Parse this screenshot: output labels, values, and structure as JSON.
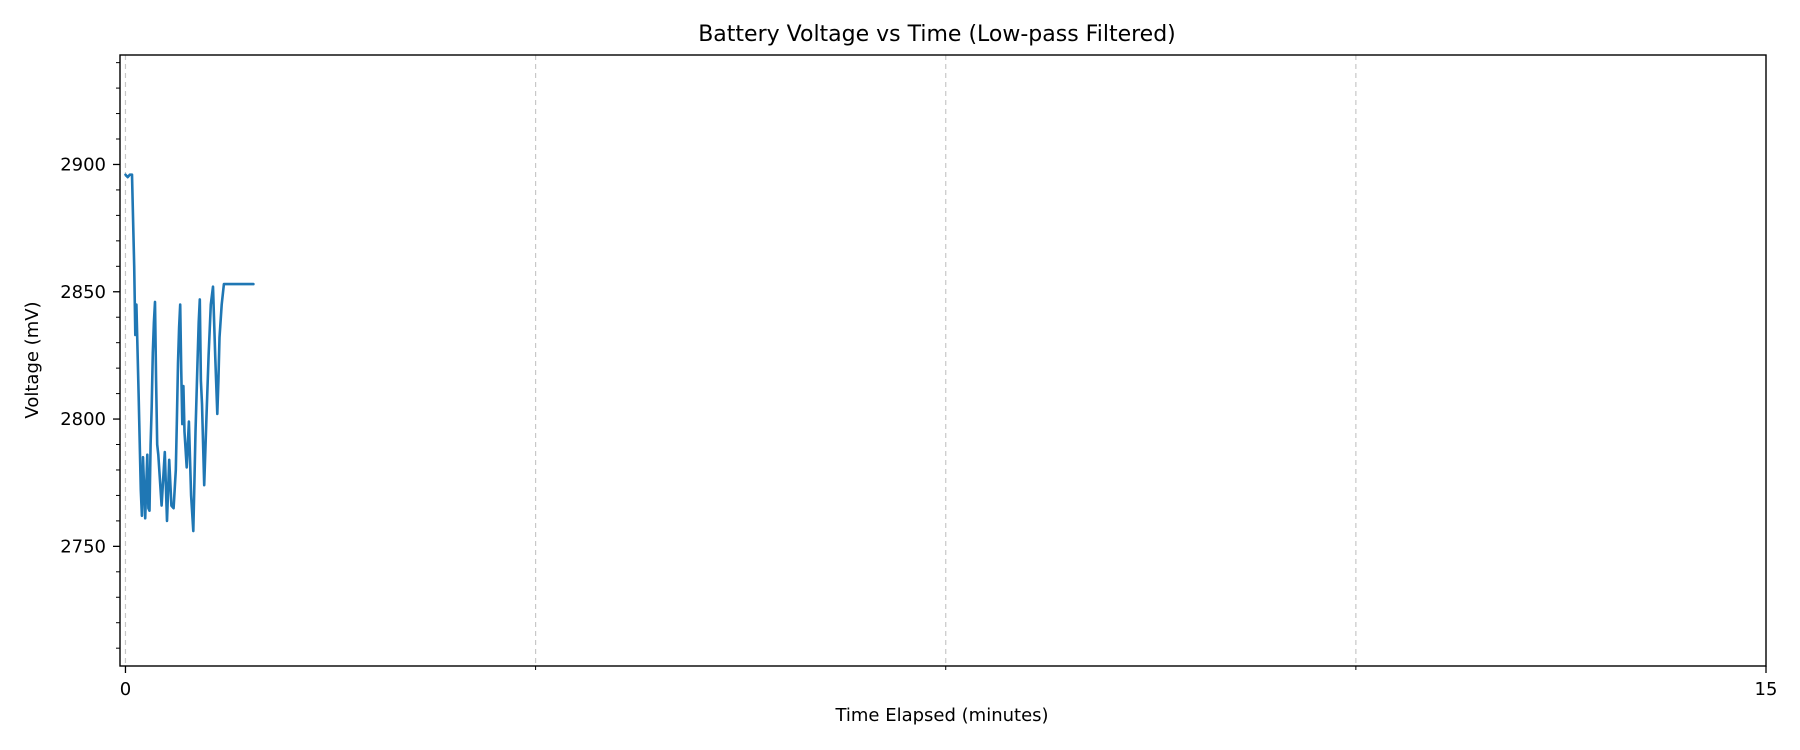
{
  "chart_data": {
    "type": "line",
    "title": "Battery Voltage vs Time (Low-pass Filtered)",
    "xlabel": "Time Elapsed (minutes)",
    "ylabel": "Voltage (mV)",
    "xlim": [
      -0.05,
      15
    ],
    "ylim": [
      2703,
      2943
    ],
    "x_ticks_labeled": [
      0,
      15
    ],
    "x_grid_at": [
      0,
      3.75,
      7.5,
      11.25
    ],
    "x_minor_ticks": [
      3.75,
      7.5,
      11.25
    ],
    "y_ticks": [
      2750,
      2800,
      2850,
      2900
    ],
    "y_minor_step": 10,
    "grid": "vertical dashed",
    "color": "#1f77b4",
    "series": [
      {
        "x": [
          0.0,
          0.02,
          0.04,
          0.06,
          0.08,
          0.09,
          0.1,
          0.12,
          0.14,
          0.15,
          0.16,
          0.18,
          0.2,
          0.21,
          0.22,
          0.23,
          0.24,
          0.25,
          0.26,
          0.27,
          0.28,
          0.29,
          0.3,
          0.33,
          0.36,
          0.38,
          0.4,
          0.42,
          0.44,
          0.46,
          0.47,
          0.48,
          0.49,
          0.5,
          0.51,
          0.52,
          0.53,
          0.54,
          0.56,
          0.58,
          0.6,
          0.62,
          0.63,
          0.64,
          0.65,
          0.66,
          0.67,
          0.68,
          0.69,
          0.7,
          0.71,
          0.72,
          0.74,
          0.76,
          0.78,
          0.8,
          0.82,
          0.84,
          0.85,
          0.86,
          0.88,
          0.9,
          0.92,
          0.94,
          0.96,
          0.98,
          1.0,
          1.02,
          1.04,
          1.06,
          1.08,
          1.1,
          1.12,
          1.14,
          1.16,
          1.17
        ],
        "y": [
          2896,
          2895,
          2896,
          2896,
          2860,
          2833,
          2845,
          2810,
          2772,
          2762,
          2785,
          2761,
          2786,
          2765,
          2764,
          2790,
          2805,
          2826,
          2838,
          2846,
          2815,
          2790,
          2786,
          2766,
          2787,
          2760,
          2784,
          2766,
          2765,
          2780,
          2800,
          2822,
          2836,
          2845,
          2820,
          2798,
          2813,
          2795,
          2781,
          2799,
          2770,
          2756,
          2775,
          2795,
          2810,
          2825,
          2838,
          2847,
          2815,
          2806,
          2790,
          2774,
          2800,
          2825,
          2845,
          2852,
          2825,
          2802,
          2815,
          2832,
          2845,
          2853,
          2853,
          2853,
          2853,
          2853,
          2853,
          2853,
          2853,
          2853,
          2853,
          2853,
          2853,
          2853,
          2853,
          2853
        ]
      }
    ]
  }
}
